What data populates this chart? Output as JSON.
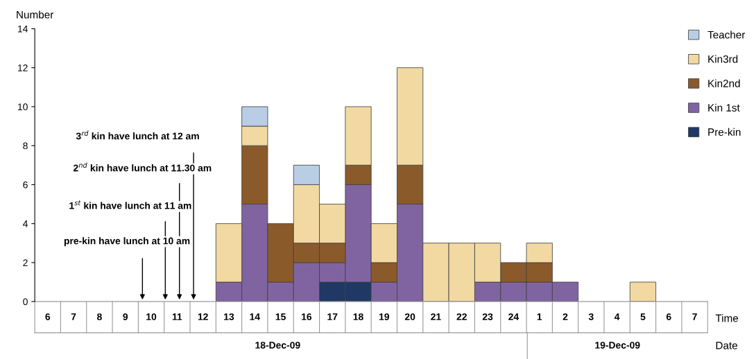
{
  "chart_data": {
    "type": "bar",
    "stacked": true,
    "ylabel": "Number",
    "xlabel": "Time",
    "categories": [
      "6",
      "7",
      "8",
      "9",
      "10",
      "11",
      "12",
      "13",
      "14",
      "15",
      "16",
      "17",
      "18",
      "19",
      "20",
      "21",
      "22",
      "23",
      "24",
      "1",
      "2",
      "3",
      "4",
      "5",
      "6",
      "7"
    ],
    "series": [
      {
        "name": "Pre-kin",
        "color": "#1f3864",
        "values": [
          0,
          0,
          0,
          0,
          0,
          0,
          0,
          0,
          0,
          0,
          0,
          1,
          1,
          0,
          0,
          0,
          0,
          0,
          0,
          0,
          0,
          0,
          0,
          0,
          0,
          0
        ]
      },
      {
        "name": "Kin 1st",
        "color": "#8064a2",
        "values": [
          0,
          0,
          0,
          0,
          0,
          0,
          0,
          1,
          5,
          1,
          2,
          1,
          5,
          1,
          5,
          0,
          0,
          1,
          1,
          1,
          1,
          0,
          0,
          0,
          0,
          0
        ]
      },
      {
        "name": "Kin2nd",
        "color": "#8b5a2b",
        "values": [
          0,
          0,
          0,
          0,
          0,
          0,
          0,
          0,
          3,
          3,
          1,
          1,
          1,
          1,
          2,
          0,
          0,
          0,
          1,
          1,
          0,
          0,
          0,
          0,
          0,
          0
        ]
      },
      {
        "name": "Kin3rd",
        "color": "#f2d9a2",
        "values": [
          0,
          0,
          0,
          0,
          0,
          0,
          0,
          3,
          1,
          0,
          3,
          2,
          3,
          2,
          5,
          3,
          3,
          2,
          0,
          1,
          0,
          0,
          0,
          1,
          0,
          0
        ]
      },
      {
        "name": "Teacher",
        "color": "#b9cde5",
        "values": [
          0,
          0,
          0,
          0,
          0,
          0,
          0,
          0,
          1,
          0,
          1,
          0,
          0,
          0,
          0,
          0,
          0,
          0,
          0,
          0,
          0,
          0,
          0,
          0,
          0,
          0
        ]
      }
    ],
    "ylim": [
      0,
      14
    ],
    "yticks": [
      0,
      2,
      4,
      6,
      8,
      10,
      12,
      14
    ],
    "grid": false,
    "legend": "top right",
    "annotations": [
      "pre-kin have lunch at 10 am",
      "1$^{st}$ kin have lunch at 11 am",
      "2$^{nd}$ kin have lunch at 11.30 am",
      "3$^{rd}$ kin have lunch at 12 am",
      "18-Dec-09",
      "19-Dec-09",
      "Date"
    ]
  }
}
